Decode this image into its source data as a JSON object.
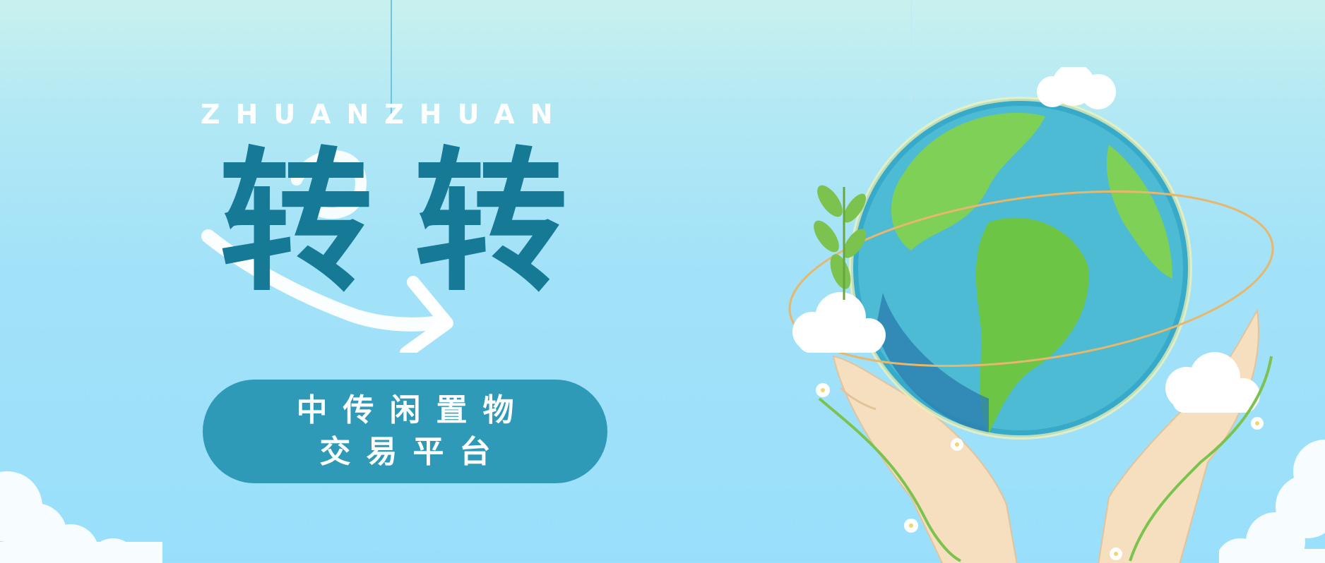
{
  "brand": {
    "pinyin": "ZHUANZHUAN",
    "title": "转转",
    "tagline_line1": "中传闲置物",
    "tagline_line2": "交易平台"
  },
  "colors": {
    "background_top": "#c9f1ee",
    "background_bottom": "#99dffb",
    "title": "#167a96",
    "pill": "#2e9ab7",
    "pill_text": "#ffffff",
    "pinyin_text": "#ffffff"
  },
  "illustration": {
    "subject": "earth-globe-held-in-hands",
    "decorations": [
      "clouds",
      "leaves",
      "vines",
      "white-flowers",
      "orbit-ring"
    ]
  }
}
